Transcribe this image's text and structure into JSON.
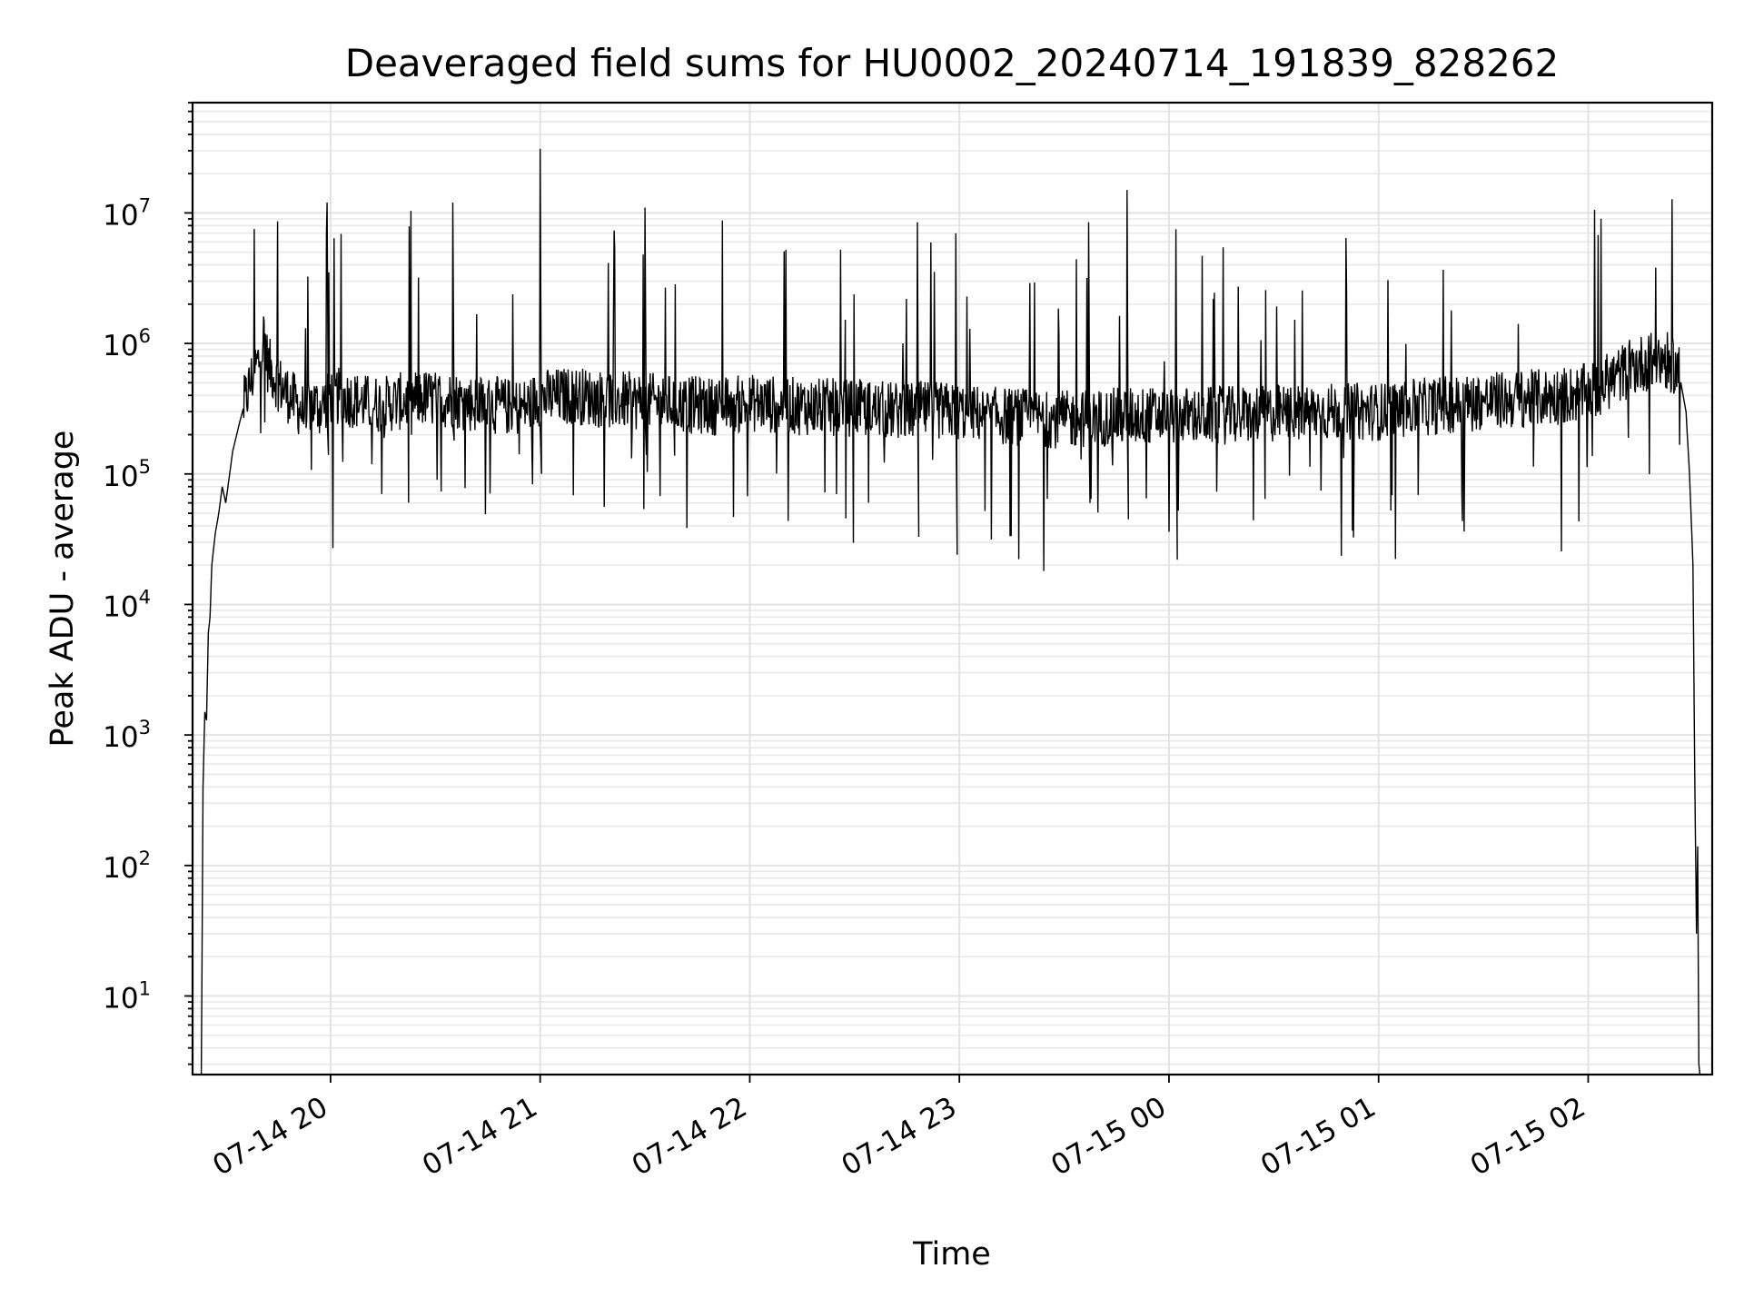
{
  "chart_data": {
    "type": "line",
    "title": "Deaveraged field sums for HU0002_20240714_191839_828262",
    "xlabel": "Time",
    "ylabel": "Peak ADU - average",
    "x_scale": "time",
    "y_scale": "log",
    "xlim": [
      "2024-07-14T19:20:30",
      "2024-07-15T02:35:30"
    ],
    "ylim": [
      2.5,
      70000000
    ],
    "grid": {
      "major": true,
      "minor_y": true
    },
    "line_color": "#000000",
    "x_ticks": [
      {
        "t": "2024-07-14T20:00:00",
        "label": "07-14 20"
      },
      {
        "t": "2024-07-14T21:00:00",
        "label": "07-14 21"
      },
      {
        "t": "2024-07-14T22:00:00",
        "label": "07-14 22"
      },
      {
        "t": "2024-07-14T23:00:00",
        "label": "07-14 23"
      },
      {
        "t": "2024-07-15T00:00:00",
        "label": "07-15 00"
      },
      {
        "t": "2024-07-15T01:00:00",
        "label": "07-15 01"
      },
      {
        "t": "2024-07-15T02:00:00",
        "label": "07-15 02"
      }
    ],
    "y_ticks": [
      {
        "value": 10,
        "base": "10",
        "exp": "1"
      },
      {
        "value": 100,
        "base": "10",
        "exp": "2"
      },
      {
        "value": 1000,
        "base": "10",
        "exp": "3"
      },
      {
        "value": 10000,
        "base": "10",
        "exp": "4"
      },
      {
        "value": 100000,
        "base": "10",
        "exp": "5"
      },
      {
        "value": 1000000,
        "base": "10",
        "exp": "6"
      },
      {
        "value": 10000000,
        "base": "10",
        "exp": "7"
      }
    ],
    "series": [
      {
        "x": [
          "2024-07-14T19:23:00",
          "2024-07-14T19:23:30",
          "2024-07-14T19:24:00",
          "2024-07-14T19:24:30",
          "2024-07-14T19:25:00",
          "2024-07-14T19:25:30",
          "2024-07-14T19:26:00",
          "2024-07-14T19:27:00",
          "2024-07-14T19:28:00",
          "2024-07-14T19:29:00",
          "2024-07-14T19:30:00",
          "2024-07-14T19:32:00",
          "2024-07-14T19:34:00",
          "2024-07-14T19:36:00",
          "2024-07-14T19:38:00",
          "2024-07-14T19:40:00",
          "2024-07-14T19:41:00",
          "2024-07-14T19:42:00",
          "2024-07-14T19:45:00",
          "2024-07-14T19:48:00",
          "2024-07-14T19:50:00",
          "2024-07-14T19:52:00",
          "2024-07-14T19:55:00",
          "2024-07-14T19:57:00",
          "2024-07-14T20:00:00",
          "2024-07-14T20:05:00",
          "2024-07-14T20:10:00",
          "2024-07-14T20:15:00",
          "2024-07-14T20:20:00",
          "2024-07-14T20:27:00",
          "2024-07-14T20:35:00",
          "2024-07-14T20:40:00",
          "2024-07-14T20:45:00",
          "2024-07-14T20:50:00",
          "2024-07-14T20:55:00",
          "2024-07-14T21:00:00",
          "2024-07-14T21:10:00",
          "2024-07-14T21:20:00",
          "2024-07-14T21:30:00",
          "2024-07-14T21:40:00",
          "2024-07-14T21:50:00",
          "2024-07-14T22:00:00",
          "2024-07-14T22:15:00",
          "2024-07-14T22:30:00",
          "2024-07-14T22:45:00",
          "2024-07-14T22:50:00",
          "2024-07-14T23:00:00",
          "2024-07-14T23:10:00",
          "2024-07-14T23:20:00",
          "2024-07-14T23:30:00",
          "2024-07-14T23:40:00",
          "2024-07-14T23:50:00",
          "2024-07-15T00:00:00",
          "2024-07-15T00:15:00",
          "2024-07-15T00:30:00",
          "2024-07-15T00:45:00",
          "2024-07-15T01:00:00",
          "2024-07-15T01:15:00",
          "2024-07-15T01:30:00",
          "2024-07-15T01:45:00",
          "2024-07-15T02:00:00",
          "2024-07-15T02:05:00",
          "2024-07-15T02:10:00",
          "2024-07-15T02:15:00",
          "2024-07-15T02:20:00",
          "2024-07-15T02:24:00",
          "2024-07-15T02:26:00",
          "2024-07-15T02:28:00",
          "2024-07-15T02:29:00",
          "2024-07-15T02:30:00",
          "2024-07-15T02:30:30",
          "2024-07-15T02:31:00",
          "2024-07-15T02:31:20",
          "2024-07-15T02:31:40",
          "2024-07-15T02:32:00"
        ],
        "y": [
          2.5,
          400,
          1500,
          1300,
          6000,
          8000,
          20000,
          35000,
          50000,
          80000,
          60000,
          150000,
          250000,
          400000,
          600000,
          800000,
          1200000,
          700000,
          500000,
          400000,
          350000,
          300000,
          350000,
          320000,
          400000,
          380000,
          350000,
          340000,
          360000,
          380000,
          370000,
          350000,
          340000,
          330000,
          320000,
          380000,
          400000,
          370000,
          360000,
          340000,
          330000,
          350000,
          330000,
          320000,
          300000,
          310000,
          300000,
          280000,
          270000,
          260000,
          270000,
          280000,
          280000,
          280000,
          290000,
          300000,
          300000,
          330000,
          360000,
          380000,
          420000,
          500000,
          600000,
          700000,
          750000,
          720000,
          600000,
          300000,
          100000,
          20000,
          500,
          30,
          140,
          3,
          2.5
        ],
        "spikes": [
          {
            "t": "2024-07-14T19:59:00",
            "peak": 12000000,
            "trough": 140000
          },
          {
            "t": "2024-07-14T20:35:00",
            "peak": 12000000,
            "trough": 180000
          },
          {
            "t": "2024-07-14T21:00:00",
            "peak": 31000000,
            "trough": 100000
          },
          {
            "t": "2024-07-14T21:30:00",
            "peak": 11000000,
            "trough": 140000
          },
          {
            "t": "2024-07-14T22:48:00",
            "peak": 8500000,
            "trough": 33000
          },
          {
            "t": "2024-07-14T22:59:00",
            "peak": 7000000,
            "trough": 24000
          },
          {
            "t": "2024-07-14T23:37:00",
            "peak": 8500000,
            "trough": 60000
          },
          {
            "t": "2024-07-14T23:48:00",
            "peak": 15000000,
            "trough": 45000
          },
          {
            "t": "2024-07-15T00:02:00",
            "peak": 7500000,
            "trough": 22000
          }
        ]
      }
    ]
  }
}
